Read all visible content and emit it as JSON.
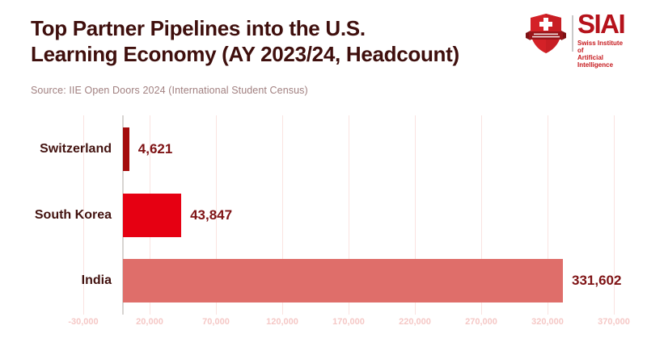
{
  "header": {
    "title_line1": "Top Partner Pipelines into the U.S.",
    "title_line2": "Learning Economy (AY 2023/24, Headcount)",
    "source": "Source: IIE Open Doors 2024 (International Student Census)"
  },
  "logo": {
    "brand": "SIAI",
    "tagline_line1": "Swiss Institute of",
    "tagline_line2": "Artificial Intelligence",
    "brand_color": "#b5121b",
    "shield_color": "#d42127",
    "banner_color": "#98151a"
  },
  "chart_data": {
    "type": "bar",
    "orientation": "horizontal",
    "title": "Top Partner Pipelines into the U.S. Learning Economy (AY 2023/24, Headcount)",
    "xlabel": "",
    "ylabel": "",
    "categories": [
      "Switzerland",
      "South Korea",
      "India"
    ],
    "values": [
      4621,
      43847,
      331602
    ],
    "value_labels": [
      "4,621",
      "43,847",
      "331,602"
    ],
    "bar_colors": [
      "#a40c0c",
      "#e60012",
      "#df6e6a"
    ],
    "xlim": [
      -30000,
      370000
    ],
    "x_ticks": [
      -30000,
      20000,
      70000,
      120000,
      170000,
      220000,
      270000,
      320000,
      370000
    ],
    "x_tick_labels": [
      "-30,000",
      "20,000",
      "70,000",
      "120,000",
      "170,000",
      "220,000",
      "270,000",
      "320,000",
      "370,000"
    ],
    "grid": "vertical-major",
    "gridline_color": "#fae3e1",
    "zero_line_color": "#d8d4d2",
    "tick_label_color": "#f5c8c6",
    "legend": "none"
  }
}
